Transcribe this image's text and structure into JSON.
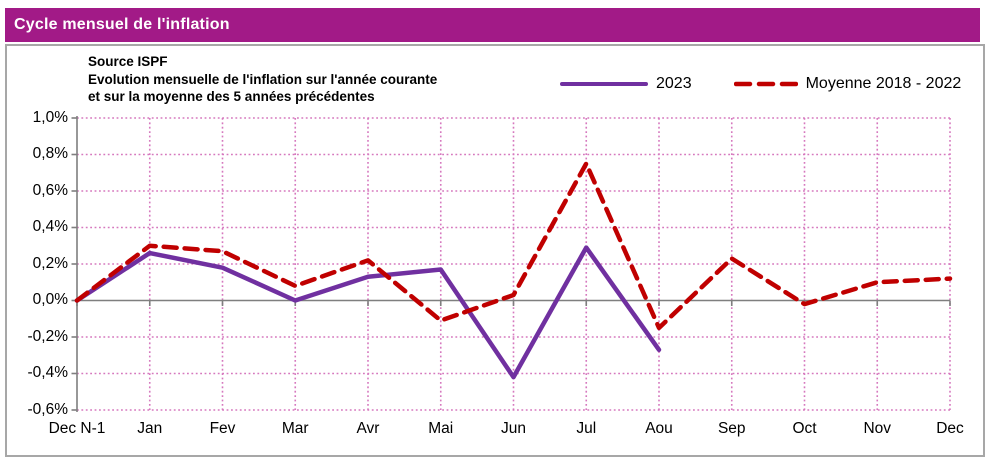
{
  "header": {
    "title": "Cycle mensuel de l'inflation",
    "background_color": "#A21A87"
  },
  "source_block": {
    "line1": "Source ISPF",
    "line2": "Evolution mensuelle de l'inflation sur l'année courante",
    "line3": "et sur la moyenne des 5 années précédentes"
  },
  "legend": {
    "items": [
      {
        "label": "2023",
        "color": "#7030A0",
        "style": "solid"
      },
      {
        "label": "Moyenne 2018 - 2022",
        "color": "#C00000",
        "style": "dashed"
      }
    ]
  },
  "chart_data": {
    "type": "line",
    "title": "Cycle mensuel de l'inflation",
    "subtitle": "Evolution mensuelle de l'inflation sur l'année courante et sur la moyenne des 5 années précédentes",
    "source": "Source ISPF",
    "categories": [
      "Dec N-1",
      "Jan",
      "Fev",
      "Mar",
      "Avr",
      "Mai",
      "Jun",
      "Jul",
      "Aou",
      "Sep",
      "Oct",
      "Nov",
      "Dec"
    ],
    "series": [
      {
        "name": "2023",
        "color": "#7030A0",
        "style": "solid",
        "values": [
          0.0,
          0.26,
          0.18,
          0.0,
          0.13,
          0.17,
          -0.42,
          0.29,
          -0.27,
          null,
          null,
          null,
          null
        ]
      },
      {
        "name": "Moyenne 2018 - 2022",
        "color": "#C00000",
        "style": "dashed",
        "values": [
          0.0,
          0.3,
          0.27,
          0.08,
          0.22,
          -0.11,
          0.03,
          0.75,
          -0.15,
          0.23,
          -0.02,
          0.1,
          0.12
        ]
      }
    ],
    "xlabel": "",
    "ylabel": "",
    "ylim": [
      -0.6,
      1.0
    ],
    "ytick_step": 0.2,
    "y_tick_labels": [
      "1,0%",
      "0,8%",
      "0,6%",
      "0,4%",
      "0,2%",
      "0,0%",
      "-0,2%",
      "-0,4%",
      "-0,6%"
    ],
    "grid": {
      "show": true,
      "color": "#D678BE",
      "style": "dotted"
    },
    "zero_axis_color": "#7F7F7F",
    "legend_position": "top-right"
  }
}
